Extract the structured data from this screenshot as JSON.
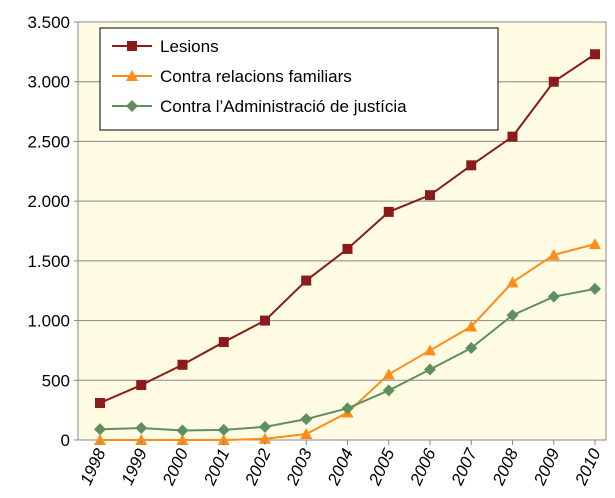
{
  "chart_data": {
    "type": "line",
    "categories": [
      "1998",
      "1999",
      "2000",
      "2001",
      "2002",
      "2003",
      "2004",
      "2005",
      "2006",
      "2007",
      "2008",
      "2009",
      "2010"
    ],
    "series": [
      {
        "name": "Lesions",
        "color": "#8b1a1a",
        "marker": "square",
        "values": [
          310,
          460,
          630,
          820,
          1000,
          1335,
          1600,
          1910,
          2050,
          2300,
          2540,
          3000,
          3230
        ]
      },
      {
        "name": "Contra relacions familiars",
        "color": "#ff8c1a",
        "marker": "triangle",
        "values": [
          0,
          0,
          0,
          0,
          10,
          50,
          230,
          550,
          750,
          950,
          1320,
          1550,
          1640
        ]
      },
      {
        "name": "Contra l’Administració de justícia",
        "color": "#5f8f5f",
        "marker": "diamond",
        "values": [
          90,
          100,
          80,
          85,
          110,
          175,
          265,
          415,
          590,
          770,
          1045,
          1200,
          1265
        ]
      }
    ],
    "ylim": [
      0,
      3500
    ],
    "yticks": [
      0,
      500,
      {
        "value": 1000,
        "label": "1.000"
      },
      {
        "value": 1500,
        "label": "1.500"
      },
      {
        "value": 2000,
        "label": "2.000"
      },
      {
        "value": 2500,
        "label": "2.500"
      },
      {
        "value": 3000,
        "label": "3.000"
      },
      {
        "value": 3500,
        "label": "3.500"
      }
    ],
    "grid": true,
    "legend": "top-left"
  }
}
